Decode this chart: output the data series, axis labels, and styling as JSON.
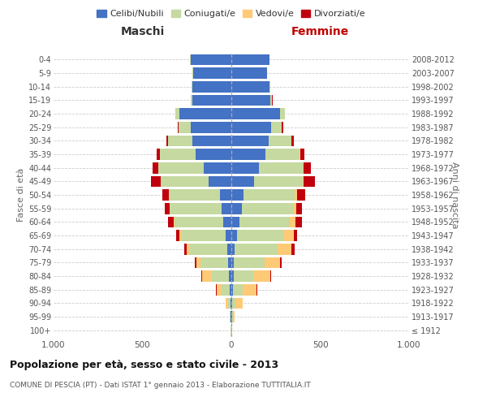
{
  "age_groups": [
    "100+",
    "95-99",
    "90-94",
    "85-89",
    "80-84",
    "75-79",
    "70-74",
    "65-69",
    "60-64",
    "55-59",
    "50-54",
    "45-49",
    "40-44",
    "35-39",
    "30-34",
    "25-29",
    "20-24",
    "15-19",
    "10-14",
    "5-9",
    "0-4"
  ],
  "birth_years": [
    "≤ 1912",
    "1913-1917",
    "1918-1922",
    "1923-1927",
    "1928-1932",
    "1933-1937",
    "1938-1942",
    "1943-1947",
    "1948-1952",
    "1953-1957",
    "1958-1962",
    "1963-1967",
    "1968-1972",
    "1973-1977",
    "1978-1982",
    "1983-1987",
    "1988-1992",
    "1993-1997",
    "1998-2002",
    "2003-2007",
    "2008-2012"
  ],
  "male_celibi": [
    2,
    4,
    5,
    8,
    15,
    20,
    25,
    30,
    45,
    55,
    65,
    130,
    155,
    200,
    220,
    230,
    290,
    220,
    220,
    215,
    230
  ],
  "male_coniugati": [
    2,
    5,
    15,
    45,
    95,
    155,
    210,
    250,
    275,
    290,
    285,
    265,
    255,
    200,
    135,
    65,
    25,
    8,
    5,
    2,
    1
  ],
  "male_vedovi": [
    1,
    2,
    10,
    30,
    55,
    20,
    15,
    10,
    5,
    3,
    2,
    1,
    1,
    0,
    0,
    0,
    0,
    0,
    0,
    0,
    0
  ],
  "male_divorziati": [
    0,
    0,
    0,
    2,
    5,
    10,
    15,
    20,
    30,
    25,
    35,
    55,
    30,
    20,
    10,
    5,
    2,
    0,
    0,
    0,
    0
  ],
  "female_celibi": [
    1,
    3,
    5,
    8,
    12,
    15,
    20,
    30,
    45,
    60,
    70,
    130,
    155,
    190,
    210,
    225,
    275,
    220,
    215,
    200,
    215
  ],
  "female_coniugati": [
    2,
    5,
    20,
    55,
    110,
    170,
    240,
    265,
    285,
    285,
    285,
    270,
    250,
    195,
    130,
    60,
    25,
    10,
    5,
    3,
    1
  ],
  "female_vedovi": [
    3,
    10,
    40,
    80,
    95,
    90,
    80,
    55,
    30,
    20,
    15,
    5,
    3,
    2,
    0,
    0,
    0,
    0,
    0,
    0,
    0
  ],
  "female_divorziati": [
    0,
    0,
    1,
    2,
    8,
    10,
    15,
    20,
    35,
    30,
    45,
    65,
    40,
    25,
    10,
    5,
    2,
    1,
    0,
    0,
    0
  ],
  "colors": {
    "celibi": "#4472C4",
    "coniugati": "#C5D9A0",
    "vedovi": "#FFCA76",
    "divorziati": "#C0000C"
  },
  "title": "Popolazione per età, sesso e stato civile - 2013",
  "subtitle": "COMUNE DI PESCIA (PT) - Dati ISTAT 1° gennaio 2013 - Elaborazione TUTTITALIA.IT",
  "xlabel_left": "Maschi",
  "xlabel_right": "Femmine",
  "ylabel_left": "Fasce di età",
  "ylabel_right": "Anni di nascita",
  "xlim": 1000,
  "background_color": "#ffffff",
  "legend_labels": [
    "Celibi/Nubili",
    "Coniugati/e",
    "Vedovi/e",
    "Divorziati/e"
  ]
}
